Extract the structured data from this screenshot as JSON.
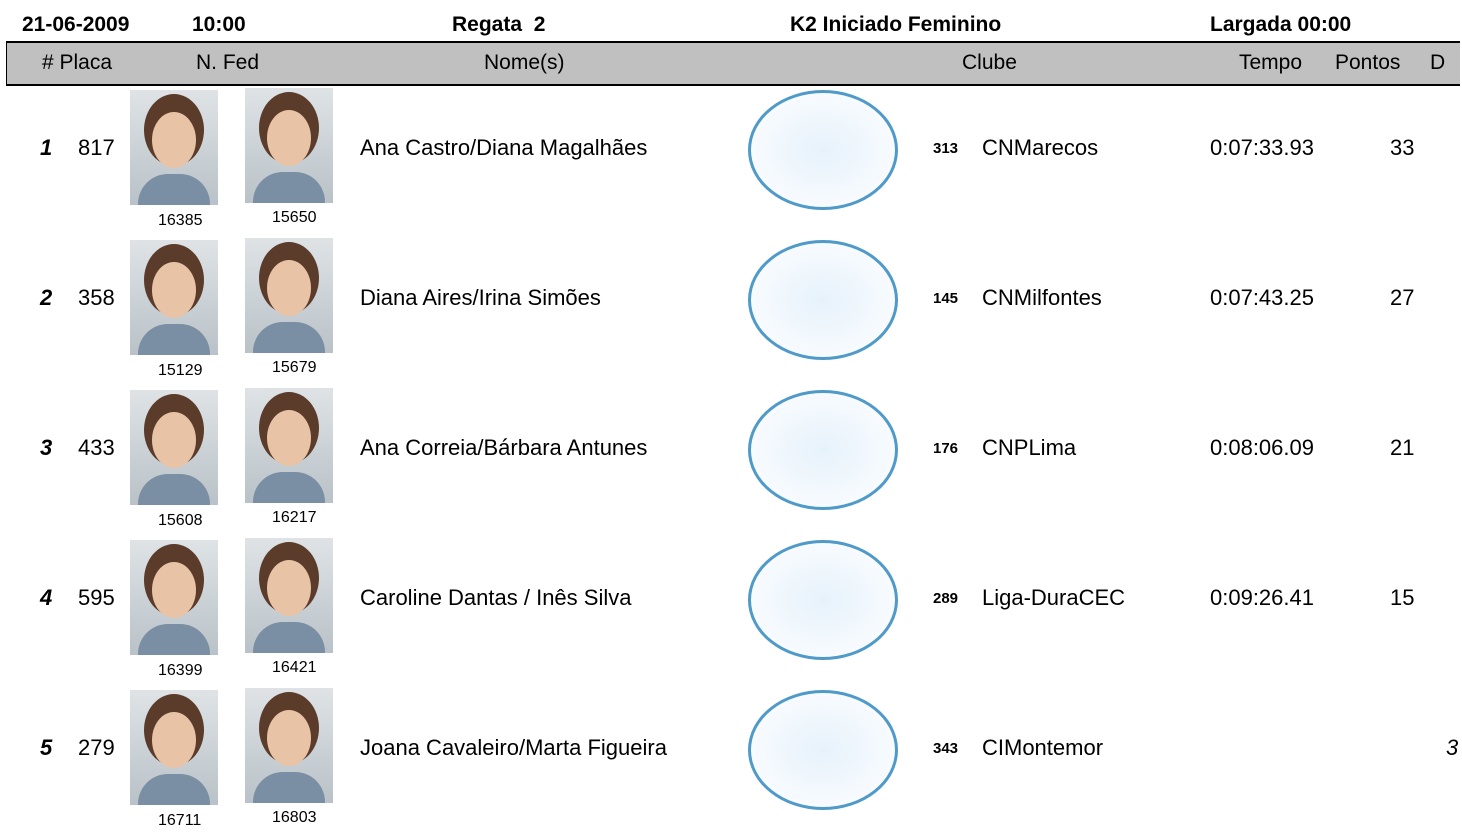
{
  "header": {
    "date": "21-06-2009",
    "time": "10:00",
    "race": "Regata  2",
    "category": "K2 Iniciado Feminino",
    "start": "Largada 00:00"
  },
  "table": {
    "columns": [
      "# Placa",
      "N. Fed",
      "Nome(s)",
      "Clube",
      "Tempo",
      "Pontos",
      "D"
    ],
    "rows": [
      {
        "place": "1",
        "plate": "817",
        "fed1": "16385",
        "fed2": "15650",
        "names": "Ana Castro/Diana Magalhães",
        "club_code": "313",
        "club": "CNMarecos",
        "time": "0:07:33.93",
        "points": "33"
      },
      {
        "place": "2",
        "plate": "358",
        "fed1": "15129",
        "fed2": "15679",
        "names": "Diana Aires/Irina Simões",
        "club_code": "145",
        "club": "CNMilfontes",
        "time": "0:07:43.25",
        "points": "27"
      },
      {
        "place": "3",
        "plate": "433",
        "fed1": "15608",
        "fed2": "16217",
        "names": "Ana Correia/Bárbara Antunes",
        "club_code": "176",
        "club": "CNPLima",
        "time": "0:08:06.09",
        "points": "21"
      },
      {
        "place": "4",
        "plate": "595",
        "fed1": "16399",
        "fed2": "16421",
        "names": "Caroline Dantas / Inês Silva",
        "club_code": "289",
        "club": "Liga-DuraCEC",
        "time": "0:09:26.41",
        "points": "15"
      },
      {
        "place": "5",
        "plate": "279",
        "fed1": "16711",
        "fed2": "16803",
        "names": "Joana Cavaleiro/Marta Figueira",
        "club_code": "343",
        "club": "CIMontemor",
        "d": "3"
      }
    ]
  }
}
